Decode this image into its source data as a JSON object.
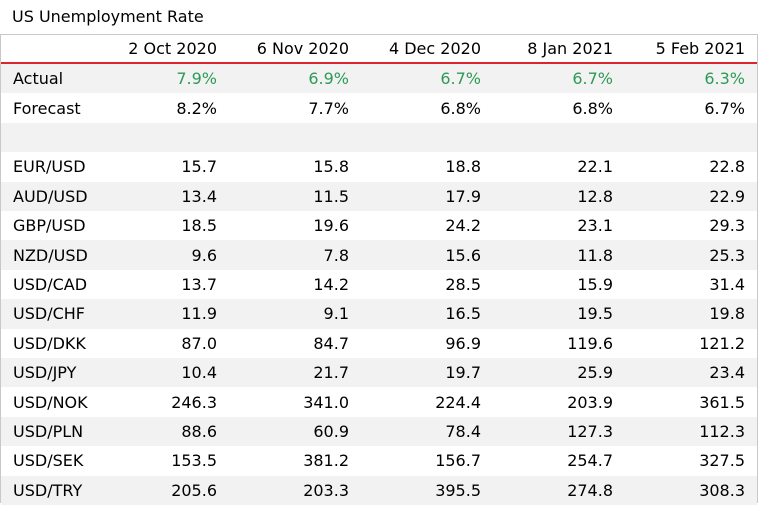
{
  "title": "US Unemployment Rate",
  "columns": [
    "2 Oct 2020",
    "6 Nov 2020",
    "4 Dec 2020",
    "8 Jan 2021",
    "5 Feb 2021"
  ],
  "colors": {
    "header_rule": "#d9262c",
    "actual_value": "#2e9a56",
    "row_shade": "#f2f2f2"
  },
  "rows": [
    {
      "label": "Actual",
      "values": [
        "7.9%",
        "6.9%",
        "6.7%",
        "6.7%",
        "6.3%"
      ],
      "highlight": true
    },
    {
      "label": "Forecast",
      "values": [
        "8.2%",
        "7.7%",
        "6.8%",
        "6.8%",
        "6.7%"
      ]
    },
    {
      "label": "",
      "values": [
        "",
        "",
        "",
        "",
        ""
      ]
    },
    {
      "label": "EUR/USD",
      "values": [
        "15.7",
        "15.8",
        "18.8",
        "22.1",
        "22.8"
      ]
    },
    {
      "label": "AUD/USD",
      "values": [
        "13.4",
        "11.5",
        "17.9",
        "12.8",
        "22.9"
      ]
    },
    {
      "label": "GBP/USD",
      "values": [
        "18.5",
        "19.6",
        "24.2",
        "23.1",
        "29.3"
      ]
    },
    {
      "label": "NZD/USD",
      "values": [
        "9.6",
        "7.8",
        "15.6",
        "11.8",
        "25.3"
      ]
    },
    {
      "label": "USD/CAD",
      "values": [
        "13.7",
        "14.2",
        "28.5",
        "15.9",
        "31.4"
      ]
    },
    {
      "label": "USD/CHF",
      "values": [
        "11.9",
        "9.1",
        "16.5",
        "19.5",
        "19.8"
      ]
    },
    {
      "label": "USD/DKK",
      "values": [
        "87.0",
        "84.7",
        "96.9",
        "119.6",
        "121.2"
      ]
    },
    {
      "label": "USD/JPY",
      "values": [
        "10.4",
        "21.7",
        "19.7",
        "25.9",
        "23.4"
      ]
    },
    {
      "label": "USD/NOK",
      "values": [
        "246.3",
        "341.0",
        "224.4",
        "203.9",
        "361.5"
      ]
    },
    {
      "label": "USD/PLN",
      "values": [
        "88.6",
        "60.9",
        "78.4",
        "127.3",
        "112.3"
      ]
    },
    {
      "label": "USD/SEK",
      "values": [
        "153.5",
        "381.2",
        "156.7",
        "254.7",
        "327.5"
      ]
    },
    {
      "label": "USD/TRY",
      "values": [
        "205.6",
        "203.3",
        "395.5",
        "274.8",
        "308.3"
      ]
    }
  ]
}
